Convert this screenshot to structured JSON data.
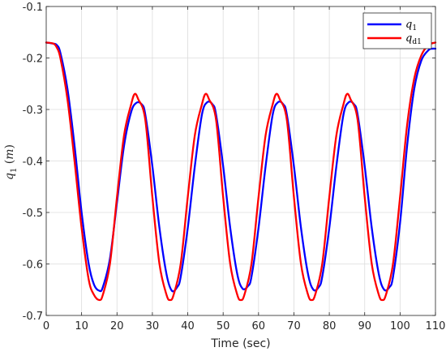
{
  "chart_data": {
    "type": "line",
    "xlabel": "Time (sec)",
    "ylabel": {
      "var": "q",
      "sub": "1",
      "unit": "m"
    },
    "xlim": [
      0,
      110
    ],
    "ylim": [
      -0.7,
      -0.1
    ],
    "xticks": [
      0,
      10,
      20,
      30,
      40,
      50,
      60,
      70,
      80,
      90,
      100,
      110
    ],
    "yticks": [
      -0.7,
      -0.6,
      -0.5,
      -0.4,
      -0.3,
      -0.2,
      -0.1
    ],
    "grid": true,
    "legend_position": "top-right",
    "series": [
      {
        "name": "q1",
        "label_var": "q",
        "label_sub": "1",
        "color": "#0000ff",
        "x": [
          0,
          2,
          3,
          4,
          6,
          8,
          10,
          12,
          13.5,
          15,
          16,
          18,
          20,
          22,
          24,
          25.5,
          27,
          28,
          30,
          32,
          34,
          35.5,
          37,
          38,
          40,
          42,
          44,
          45.5,
          47,
          48,
          50,
          52,
          54,
          55.5,
          57,
          58,
          60,
          62,
          64,
          65.5,
          67,
          68,
          70,
          72,
          74,
          75.5,
          77,
          78,
          80,
          82,
          84,
          85.5,
          87,
          88,
          90,
          92,
          94,
          95.5,
          97,
          98,
          100,
          102,
          104,
          106,
          108,
          109,
          110
        ],
        "y": [
          -0.17,
          -0.172,
          -0.175,
          -0.19,
          -0.26,
          -0.37,
          -0.5,
          -0.6,
          -0.64,
          -0.652,
          -0.645,
          -0.59,
          -0.48,
          -0.37,
          -0.305,
          -0.287,
          -0.29,
          -0.31,
          -0.41,
          -0.53,
          -0.62,
          -0.652,
          -0.645,
          -0.625,
          -0.53,
          -0.41,
          -0.31,
          -0.286,
          -0.29,
          -0.31,
          -0.41,
          -0.53,
          -0.62,
          -0.648,
          -0.643,
          -0.625,
          -0.53,
          -0.41,
          -0.31,
          -0.286,
          -0.29,
          -0.31,
          -0.41,
          -0.53,
          -0.62,
          -0.65,
          -0.645,
          -0.625,
          -0.53,
          -0.41,
          -0.31,
          -0.286,
          -0.29,
          -0.31,
          -0.41,
          -0.53,
          -0.62,
          -0.65,
          -0.645,
          -0.625,
          -0.52,
          -0.37,
          -0.26,
          -0.205,
          -0.185,
          -0.182,
          -0.182
        ]
      },
      {
        "name": "qd1",
        "label_var": "q",
        "label_sub": "d1",
        "color": "#ff0000",
        "x": [
          0,
          2,
          3,
          4,
          6,
          8,
          10,
          12,
          13.5,
          15,
          16,
          18,
          20,
          22,
          24,
          25,
          26,
          28,
          30,
          32,
          34,
          35,
          36,
          38,
          40,
          42,
          44,
          45,
          46,
          48,
          50,
          52,
          54,
          55,
          56,
          58,
          60,
          62,
          64,
          65,
          66,
          68,
          70,
          72,
          74,
          75,
          76,
          78,
          80,
          82,
          84,
          85,
          86,
          88,
          90,
          92,
          94,
          95,
          96,
          98,
          100,
          102,
          104,
          106,
          108,
          110
        ],
        "y": [
          -0.17,
          -0.172,
          -0.18,
          -0.2,
          -0.28,
          -0.4,
          -0.53,
          -0.63,
          -0.66,
          -0.67,
          -0.66,
          -0.6,
          -0.47,
          -0.35,
          -0.29,
          -0.27,
          -0.28,
          -0.32,
          -0.47,
          -0.6,
          -0.66,
          -0.67,
          -0.66,
          -0.6,
          -0.47,
          -0.35,
          -0.29,
          -0.27,
          -0.28,
          -0.32,
          -0.47,
          -0.6,
          -0.66,
          -0.67,
          -0.66,
          -0.6,
          -0.47,
          -0.35,
          -0.29,
          -0.27,
          -0.28,
          -0.32,
          -0.47,
          -0.6,
          -0.66,
          -0.67,
          -0.66,
          -0.6,
          -0.47,
          -0.35,
          -0.29,
          -0.27,
          -0.28,
          -0.32,
          -0.47,
          -0.6,
          -0.66,
          -0.67,
          -0.66,
          -0.6,
          -0.47,
          -0.33,
          -0.24,
          -0.195,
          -0.175,
          -0.17
        ]
      }
    ]
  }
}
